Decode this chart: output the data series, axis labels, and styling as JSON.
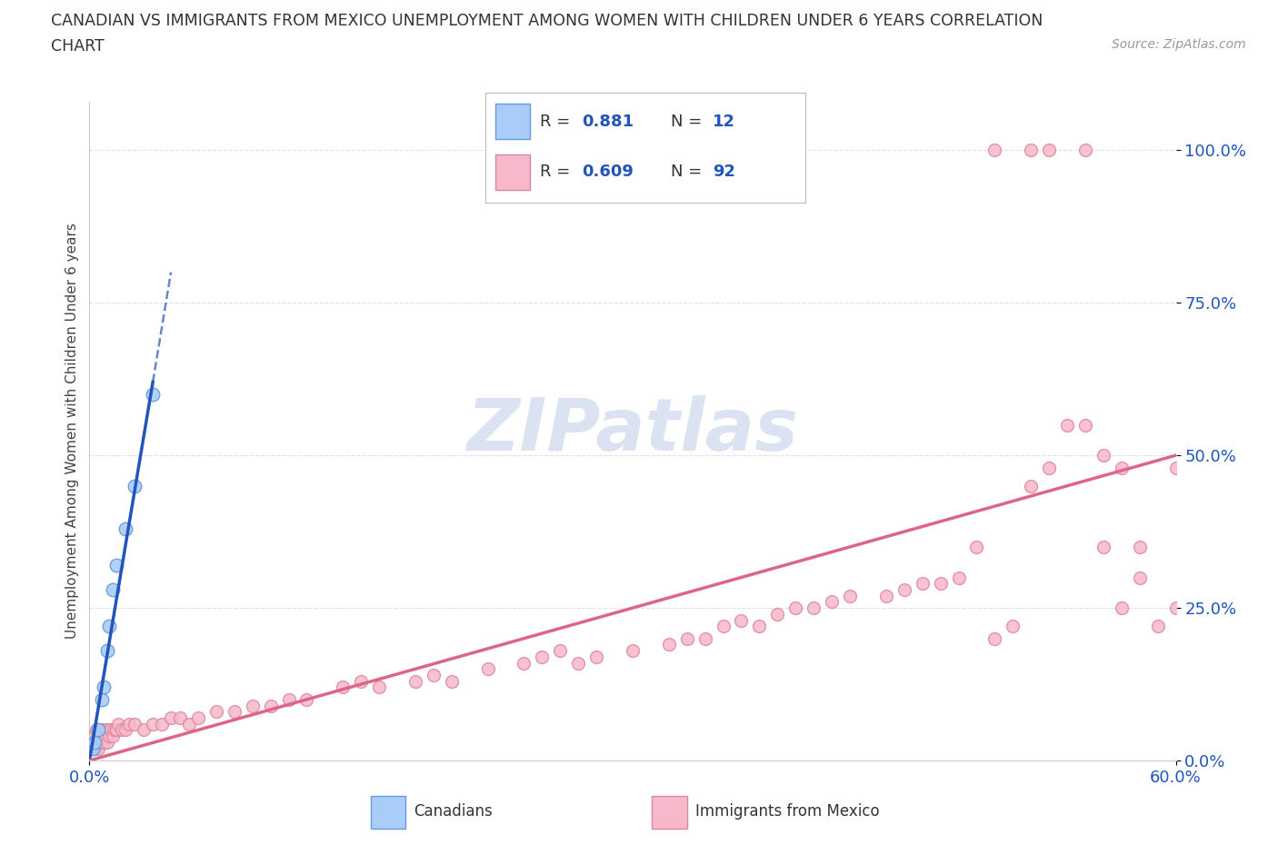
{
  "title_line1": "CANADIAN VS IMMIGRANTS FROM MEXICO UNEMPLOYMENT AMONG WOMEN WITH CHILDREN UNDER 6 YEARS CORRELATION",
  "title_line2": "CHART",
  "source_text": "Source: ZipAtlas.com",
  "ylabel": "Unemployment Among Women with Children Under 6 years",
  "y_tick_labels": [
    "0.0%",
    "25.0%",
    "50.0%",
    "75.0%",
    "100.0%"
  ],
  "y_tick_values": [
    0,
    25,
    50,
    75,
    100
  ],
  "x_lim": [
    0,
    60
  ],
  "y_lim": [
    0,
    108
  ],
  "canadian_R": 0.881,
  "canadian_N": 12,
  "mexico_R": 0.609,
  "mexico_N": 92,
  "canadian_color": "#aaccf8",
  "canadian_edge": "#6699dd",
  "mexico_color": "#f8b8cc",
  "mexico_edge": "#dd8899",
  "blue_line_color": "#2255bb",
  "pink_line_color": "#dd6688",
  "legend_r_color": "#2255bb",
  "watermark_color": "#ccd8ee",
  "background_color": "#ffffff",
  "grid_color": "#dddddd",
  "can_x": [
    0.2,
    0.3,
    0.5,
    0.7,
    0.8,
    1.0,
    1.1,
    1.3,
    1.5,
    2.0,
    2.5,
    3.5
  ],
  "can_y": [
    2,
    3,
    5,
    10,
    12,
    18,
    22,
    28,
    32,
    38,
    45,
    60
  ],
  "mex_x": [
    0.1,
    0.1,
    0.2,
    0.2,
    0.3,
    0.3,
    0.4,
    0.4,
    0.5,
    0.5,
    0.6,
    0.6,
    0.7,
    0.7,
    0.8,
    0.8,
    0.9,
    0.9,
    1.0,
    1.0,
    1.1,
    1.2,
    1.3,
    1.4,
    1.5,
    1.6,
    1.8,
    2.0,
    2.2,
    2.5,
    3.0,
    3.5,
    4.0,
    4.5,
    5.0,
    5.5,
    6.0,
    7.0,
    8.0,
    9.0,
    10.0,
    11.0,
    12.0,
    14.0,
    15.0,
    16.0,
    18.0,
    19.0,
    20.0,
    22.0,
    24.0,
    25.0,
    26.0,
    27.0,
    28.0,
    30.0,
    32.0,
    33.0,
    34.0,
    35.0,
    36.0,
    37.0,
    38.0,
    39.0,
    40.0,
    41.0,
    42.0,
    44.0,
    45.0,
    46.0,
    47.0,
    48.0,
    49.0,
    50.0,
    51.0,
    52.0,
    53.0,
    54.0,
    55.0,
    56.0,
    57.0,
    58.0,
    59.0,
    60.0,
    50.0,
    52.0,
    53.0,
    55.0,
    56.0,
    57.0,
    58.0,
    60.0
  ],
  "mex_y": [
    2,
    3,
    3,
    4,
    2,
    4,
    3,
    5,
    2,
    4,
    3,
    4,
    3,
    5,
    3,
    4,
    4,
    5,
    3,
    5,
    4,
    5,
    4,
    5,
    5,
    6,
    5,
    5,
    6,
    6,
    5,
    6,
    6,
    7,
    7,
    6,
    7,
    8,
    8,
    9,
    9,
    10,
    10,
    12,
    13,
    12,
    13,
    14,
    13,
    15,
    16,
    17,
    18,
    16,
    17,
    18,
    19,
    20,
    20,
    22,
    23,
    22,
    24,
    25,
    25,
    26,
    27,
    27,
    28,
    29,
    29,
    30,
    35,
    20,
    22,
    45,
    48,
    55,
    55,
    35,
    25,
    35,
    22,
    48,
    100,
    100,
    100,
    100,
    50,
    48,
    30,
    25
  ],
  "mex_trend_x0": 0,
  "mex_trend_y0": 0,
  "mex_trend_x1": 60,
  "mex_trend_y1": 50,
  "can_trend_x0": 0,
  "can_trend_y0": 0,
  "can_trend_x1": 3.5,
  "can_trend_y1": 62,
  "can_dash_x0": 3.5,
  "can_dash_y0": 62,
  "can_dash_x1": 4.5,
  "can_dash_y1": 80
}
